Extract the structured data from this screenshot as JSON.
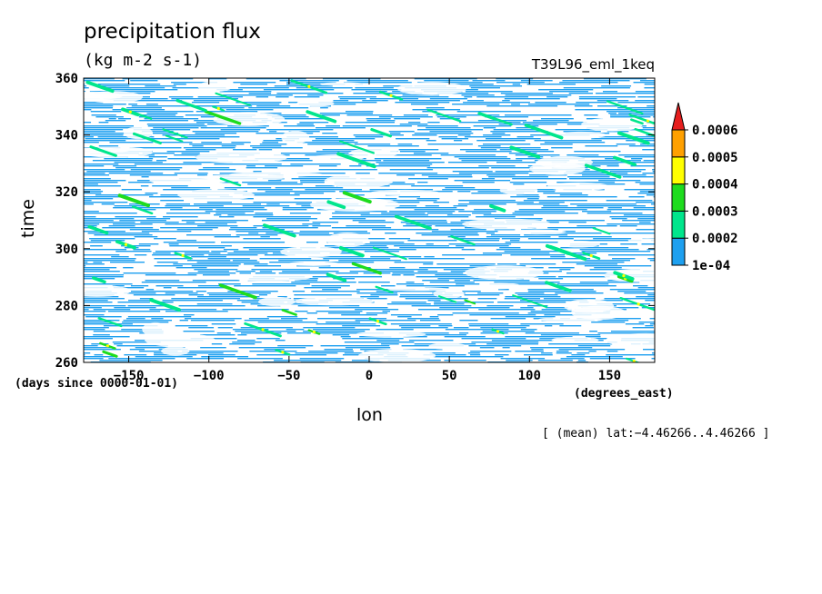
{
  "chart_data": {
    "type": "heatmap",
    "title": "precipitation flux",
    "units": "(kg m-2 s-1)",
    "run_label": "T39L96_eml_1keq",
    "xlabel": "lon",
    "xunits": "(degrees_east)",
    "ylabel": "time",
    "yunits": "(days since 0000-01-01)",
    "xlim": [
      -178.125,
      178.125
    ],
    "ylim": [
      260,
      360
    ],
    "xticks": [
      -150,
      -100,
      -50,
      0,
      50,
      100,
      150
    ],
    "xtick_labels": [
      "−150",
      "−100",
      "−50",
      "0",
      "50",
      "100",
      "150"
    ],
    "yticks": [
      260,
      280,
      300,
      320,
      340,
      360
    ],
    "ytick_labels": [
      "260",
      "280",
      "300",
      "320",
      "340",
      "360"
    ],
    "levels": [
      0.0001,
      0.0002,
      0.0003,
      0.0004,
      0.0005,
      0.0006
    ],
    "level_labels": [
      "1e-04",
      "0.0002",
      "0.0003",
      "0.0004",
      "0.0005",
      "0.0006"
    ],
    "level_colors": [
      "#ffffff",
      "#1ea0f0",
      "#00e68c",
      "#1edc1e",
      "#ffff00",
      "#ffa000",
      "#e61e1e"
    ],
    "colorbar": "right, extend max",
    "note": "[ (mean) lat:−4.46266..4.46266 ]",
    "pattern": "eastward-propagating precipitation streaks; dense coverage at 1e-04 to 0.0002 with scattered maxima up to 0.0004"
  }
}
